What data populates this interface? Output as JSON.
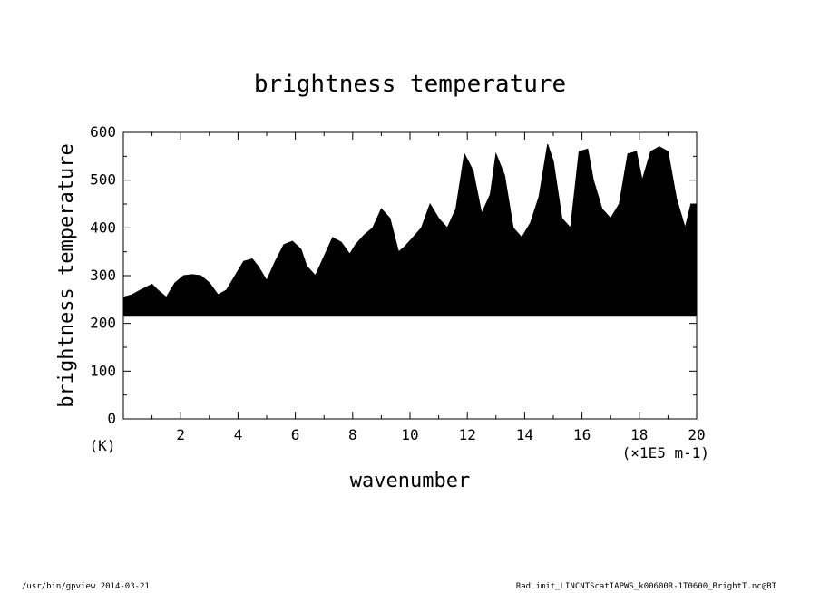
{
  "chart_data": {
    "type": "area",
    "title": "brightness temperature",
    "xlabel": "wavenumber",
    "ylabel": "brightness temperature",
    "xunit": "(×1E5 m-1)",
    "yunit": "(K)",
    "xlim": [
      0,
      20
    ],
    "ylim": [
      0,
      600
    ],
    "xticks": [
      2,
      4,
      6,
      8,
      10,
      12,
      14,
      16,
      18,
      20
    ],
    "yticks": [
      0,
      100,
      200,
      300,
      400,
      500,
      600
    ],
    "grid": false,
    "series": [
      {
        "x": [
          0.0,
          0.3,
          0.6,
          1.0,
          1.2,
          1.5,
          1.8,
          2.1,
          2.4,
          2.7,
          3.0,
          3.3,
          3.6,
          3.9,
          4.2,
          4.5,
          4.7,
          5.0,
          5.3,
          5.6,
          5.9,
          6.2,
          6.4,
          6.7,
          7.0,
          7.3,
          7.6,
          7.9,
          8.1,
          8.4,
          8.7,
          9.0,
          9.3,
          9.6,
          9.8,
          10.1,
          10.4,
          10.7,
          11.0,
          11.3,
          11.6,
          11.9,
          12.2,
          12.5,
          12.8,
          13.0,
          13.3,
          13.6,
          13.9,
          14.2,
          14.5,
          14.8,
          15.0,
          15.3,
          15.6,
          15.9,
          16.2,
          16.4,
          16.7,
          17.0,
          17.3,
          17.6,
          17.9,
          18.1,
          18.4,
          18.7,
          19.0,
          19.3,
          19.6,
          19.8,
          20.0
        ],
        "upper": [
          255,
          260,
          270,
          282,
          270,
          255,
          285,
          300,
          302,
          300,
          285,
          260,
          270,
          300,
          330,
          335,
          320,
          290,
          330,
          365,
          372,
          355,
          320,
          300,
          340,
          380,
          370,
          345,
          365,
          385,
          400,
          440,
          420,
          350,
          360,
          380,
          400,
          450,
          420,
          400,
          440,
          555,
          520,
          430,
          470,
          555,
          510,
          400,
          380,
          410,
          465,
          575,
          540,
          420,
          400,
          560,
          565,
          500,
          440,
          420,
          450,
          555,
          560,
          500,
          560,
          570,
          560,
          460,
          400,
          450,
          450
        ],
        "lower": [
          215,
          215,
          215,
          215,
          215,
          215,
          215,
          215,
          215,
          215,
          215,
          215,
          215,
          215,
          215,
          215,
          215,
          215,
          215,
          215,
          215,
          215,
          215,
          215,
          215,
          215,
          215,
          215,
          215,
          215,
          215,
          215,
          215,
          215,
          215,
          215,
          215,
          215,
          215,
          215,
          215,
          215,
          215,
          215,
          215,
          215,
          215,
          215,
          215,
          215,
          215,
          215,
          215,
          215,
          215,
          215,
          215,
          215,
          215,
          215,
          215,
          215,
          215,
          215,
          215,
          215,
          215,
          215,
          215,
          215,
          215
        ]
      }
    ]
  },
  "footer": {
    "left": "/usr/bin/gpview  2014-03-21",
    "right": "RadLimit_LINCNTScatIAPWS_k00600R-1T0600_BrightT.nc@BT"
  }
}
